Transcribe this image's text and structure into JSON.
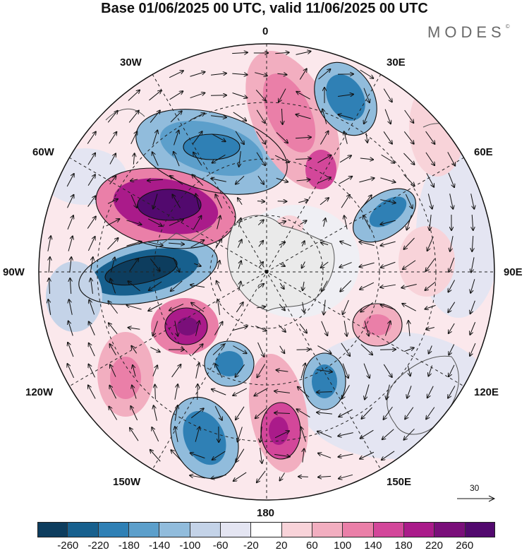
{
  "title": "Base 01/06/2025 00 UTC, valid 11/06/2025 00 UTC",
  "brand": "MODES",
  "brand_mark": "©",
  "longitude_labels": {
    "top": "0",
    "bottom": "180",
    "left": "90W",
    "right": "90E",
    "w30": "30W",
    "e30": "30E",
    "w60": "60W",
    "e60": "60E",
    "w120": "120W",
    "e120": "120E",
    "w150": "150W",
    "e150": "150E"
  },
  "reference_vector": {
    "value": "30"
  },
  "legend": {
    "ticks": [
      "-260",
      "-220",
      "-180",
      "-140",
      "-100",
      "-60",
      "-20",
      "20",
      "60",
      "100",
      "140",
      "180",
      "220",
      "260"
    ],
    "colors": [
      "#0d3d5e",
      "#17608e",
      "#2f80b5",
      "#5c9fcb",
      "#91bcdc",
      "#c4d3e8",
      "#e4e5f2",
      "#ffffff",
      "#f8d3d9",
      "#f2aec0",
      "#ea7fa8",
      "#d3479a",
      "#aa1b8a",
      "#7a0f7a",
      "#52096e"
    ]
  },
  "map": {
    "projection": "south polar stereographic",
    "anomalies": [
      {
        "id": "a1",
        "value": -180
      },
      {
        "id": "a2",
        "value": 240
      },
      {
        "id": "a3",
        "value": -260
      },
      {
        "id": "a4",
        "value": 220
      },
      {
        "id": "a5",
        "value": 140
      },
      {
        "id": "a6",
        "value": -180
      },
      {
        "id": "a7",
        "value": -140
      },
      {
        "id": "a8",
        "value": -180
      },
      {
        "id": "a9",
        "value": 180
      },
      {
        "id": "a10",
        "value": -200
      },
      {
        "id": "a11",
        "value": 140
      },
      {
        "id": "a12",
        "value": -140
      },
      {
        "id": "a13",
        "value": -160
      },
      {
        "id": "a14",
        "value": 100
      },
      {
        "id": "a15",
        "value": 120
      }
    ]
  }
}
